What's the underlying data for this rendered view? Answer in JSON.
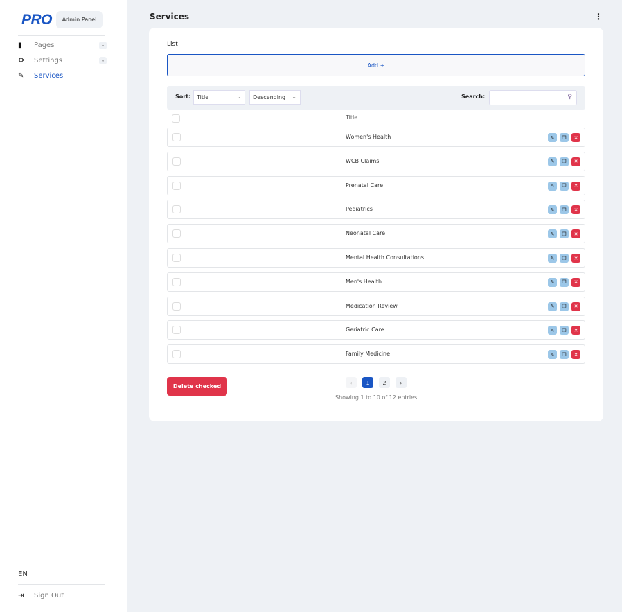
{
  "sidebar": {
    "logo": "PRO",
    "badge": "Admin Panel",
    "items": [
      {
        "label": "Pages",
        "icon": "pages-icon"
      },
      {
        "label": "Settings",
        "icon": "gear-icon"
      },
      {
        "label": "Services",
        "icon": "edit-note-icon"
      }
    ],
    "lang": "EN",
    "signout": "Sign Out"
  },
  "header": {
    "title": "Services"
  },
  "main": {
    "list_label": "List",
    "add_label": "Add +",
    "sort_label": "Sort:",
    "sort_field": "Title",
    "sort_order": "Descending",
    "search_label": "Search:",
    "search_value": "",
    "column": "Title",
    "rows": [
      "Women's Health",
      "WCB Claims",
      "Prenatal Care",
      "Pediatrics",
      "Neonatal Care",
      "Mental Health Consultations",
      "Men's Health",
      "Medication Review",
      "Geriatric Care",
      "Family Medicine"
    ],
    "delete_label": "Delete checked",
    "pages": [
      "1",
      "2"
    ],
    "current_page": "1",
    "info": "Showing 1 to 10 of 12 entries"
  },
  "colors": {
    "accent": "#1a56c4",
    "danger": "#e0344a",
    "action": "#9cc7e8"
  }
}
